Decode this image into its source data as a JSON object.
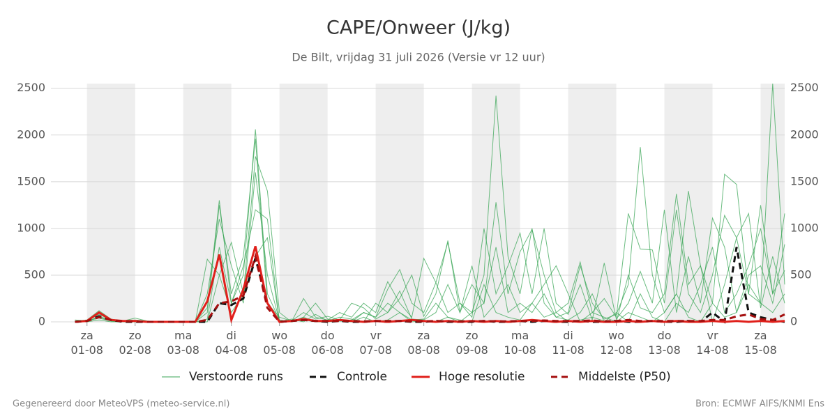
{
  "chart_data": {
    "type": "line",
    "title": "CAPE/Onweer (J/kg)",
    "subtitle": "De Bilt, vrijdag 31 juli 2026 (Versie vr 12 uur)",
    "footer_left": "Gegenereerd door MeteoVPS (meteo-service.nl)",
    "footer_right": "Bron: ECMWF AIFS/KNMI Ens",
    "x": [
      -0.25,
      0,
      0.25,
      0.5,
      0.75,
      1,
      1.25,
      1.5,
      1.75,
      2,
      2.25,
      2.5,
      2.75,
      3,
      3.25,
      3.5,
      3.75,
      4,
      4.25,
      4.5,
      4.75,
      5,
      5.25,
      5.5,
      5.75,
      6,
      6.25,
      6.5,
      6.75,
      7,
      7.25,
      7.5,
      7.75,
      8,
      8.25,
      8.5,
      8.75,
      9,
      9.25,
      9.5,
      9.75,
      10,
      10.25,
      10.5,
      10.75,
      11,
      11.25,
      11.5,
      11.75,
      12,
      12.25,
      12.5,
      12.75,
      13,
      13.25,
      13.5,
      13.75,
      14,
      14.25,
      14.5
    ],
    "xlim": [
      -0.75,
      14.5
    ],
    "xticks": [
      {
        "value": 0,
        "label": "za 01-08"
      },
      {
        "value": 1,
        "label": "zo 02-08"
      },
      {
        "value": 2,
        "label": "ma 03-08"
      },
      {
        "value": 3,
        "label": "di 04-08"
      },
      {
        "value": 4,
        "label": "wo 05-08"
      },
      {
        "value": 5,
        "label": "do 06-08"
      },
      {
        "value": 6,
        "label": "vr 07-08"
      },
      {
        "value": 7,
        "label": "za 08-08"
      },
      {
        "value": 8,
        "label": "zo 09-08"
      },
      {
        "value": 9,
        "label": "ma 10-08"
      },
      {
        "value": 10,
        "label": "di 11-08"
      },
      {
        "value": 11,
        "label": "wo 12-08"
      },
      {
        "value": 12,
        "label": "do 13-08"
      },
      {
        "value": 13,
        "label": "vr 14-08"
      },
      {
        "value": 14,
        "label": "za 15-08"
      }
    ],
    "ylim": [
      0,
      2550
    ],
    "yticks": [
      0,
      500,
      1000,
      1500,
      2000,
      2500
    ],
    "y2lim": [
      0,
      2550
    ],
    "y2ticks": [
      0,
      500,
      1000,
      1500,
      2000,
      2500
    ],
    "grid": true,
    "legend": "bottom",
    "ensemble": {
      "name": "Verstoorde runs",
      "color": "#3aa655",
      "members": [
        [
          10,
          20,
          120,
          30,
          10,
          40,
          10,
          0,
          0,
          0,
          0,
          150,
          1300,
          200,
          500,
          2060,
          300,
          20,
          0,
          50,
          200,
          30,
          10,
          20,
          100,
          50,
          350,
          560,
          200,
          100,
          420,
          850,
          200,
          100,
          500,
          2420,
          700,
          300,
          1000,
          200,
          50,
          100,
          600,
          200,
          30,
          80,
          400,
          1870,
          500,
          100,
          300,
          1400,
          600,
          200,
          1580,
          1470,
          300,
          200,
          2550,
          400
        ],
        [
          5,
          10,
          80,
          20,
          5,
          20,
          5,
          0,
          0,
          0,
          0,
          100,
          1250,
          300,
          700,
          1960,
          200,
          50,
          10,
          100,
          30,
          60,
          20,
          200,
          150,
          30,
          100,
          250,
          500,
          60,
          300,
          870,
          100,
          400,
          200,
          1280,
          300,
          750,
          990,
          500,
          100,
          200,
          640,
          100,
          250,
          50,
          1160,
          780,
          770,
          200,
          1200,
          300,
          100,
          500,
          1140,
          900,
          300,
          1250,
          300,
          1160
        ],
        [
          0,
          0,
          60,
          20,
          0,
          10,
          0,
          0,
          0,
          0,
          0,
          670,
          500,
          850,
          300,
          1770,
          1400,
          100,
          0,
          250,
          50,
          20,
          100,
          50,
          200,
          100,
          430,
          200,
          50,
          680,
          420,
          100,
          200,
          50,
          1000,
          300,
          600,
          950,
          300,
          1000,
          200,
          80,
          400,
          20,
          630,
          30,
          200,
          540,
          200,
          1200,
          100,
          700,
          200,
          1110,
          800,
          100,
          500,
          600,
          200,
          830
        ],
        [
          0,
          10,
          40,
          10,
          0,
          0,
          0,
          0,
          0,
          0,
          0,
          30,
          800,
          200,
          600,
          1200,
          1100,
          0,
          30,
          0,
          80,
          10,
          50,
          30,
          0,
          200,
          100,
          330,
          30,
          20,
          100,
          400,
          100,
          600,
          50,
          200,
          400,
          100,
          200,
          400,
          600,
          300,
          0,
          100,
          50,
          0,
          500,
          150,
          100,
          300,
          1370,
          400,
          600,
          0,
          400,
          900,
          1160,
          150,
          700,
          200
        ],
        [
          20,
          10,
          50,
          10,
          0,
          0,
          0,
          0,
          0,
          0,
          0,
          300,
          1100,
          600,
          200,
          1600,
          500,
          10,
          0,
          50,
          0,
          0,
          20,
          0,
          100,
          50,
          200,
          100,
          20,
          30,
          200,
          50,
          0,
          100,
          200,
          800,
          100,
          200,
          100,
          300,
          50,
          20,
          100,
          300,
          0,
          100,
          0,
          300,
          50,
          0,
          200,
          100,
          400,
          800,
          100,
          300,
          600,
          1000,
          300,
          550
        ],
        [
          0,
          0,
          20,
          0,
          0,
          0,
          0,
          0,
          0,
          0,
          0,
          0,
          500,
          100,
          300,
          700,
          900,
          0,
          0,
          20,
          0,
          0,
          10,
          0,
          50,
          0,
          20,
          100,
          0,
          10,
          0,
          50,
          20,
          0,
          400,
          100,
          50,
          20,
          200,
          50,
          100,
          0,
          20,
          50,
          10,
          0,
          100,
          50,
          0,
          100,
          300,
          50,
          0,
          200,
          50,
          100,
          400,
          200,
          100,
          300
        ]
      ]
    },
    "series": [
      {
        "name": "Controle",
        "color": "#111111",
        "style": "dashed",
        "values": [
          0,
          10,
          60,
          20,
          0,
          0,
          0,
          0,
          0,
          0,
          0,
          0,
          200,
          180,
          250,
          680,
          200,
          0,
          10,
          20,
          10,
          0,
          10,
          0,
          0,
          10,
          0,
          10,
          0,
          0,
          10,
          0,
          0,
          0,
          10,
          0,
          0,
          10,
          0,
          10,
          0,
          0,
          10,
          0,
          0,
          10,
          0,
          0,
          10,
          0,
          0,
          10,
          0,
          100,
          0,
          800,
          100,
          50,
          20,
          0
        ]
      },
      {
        "name": "Hoge resolutie",
        "color": "#e0201b",
        "style": "solid",
        "values": [
          0,
          10,
          100,
          20,
          10,
          10,
          0,
          0,
          0,
          0,
          0,
          220,
          720,
          20,
          350,
          810,
          200,
          0,
          10,
          30,
          10,
          10,
          20,
          10,
          0,
          10,
          0,
          10,
          20,
          10,
          0,
          10,
          0,
          10,
          0,
          10,
          0,
          10,
          20,
          10,
          0,
          10,
          0,
          10,
          0,
          0,
          10,
          0,
          10,
          0,
          10,
          0,
          0,
          10,
          0,
          10,
          0,
          10,
          0,
          10
        ]
      },
      {
        "name": "Middelste (P50)",
        "color": "#a50f0f",
        "style": "dashed",
        "values": [
          0,
          10,
          50,
          20,
          5,
          5,
          0,
          0,
          0,
          0,
          0,
          20,
          200,
          220,
          280,
          700,
          150,
          0,
          10,
          20,
          10,
          10,
          10,
          10,
          5,
          10,
          10,
          10,
          5,
          5,
          10,
          5,
          5,
          5,
          10,
          5,
          5,
          10,
          10,
          15,
          10,
          10,
          10,
          15,
          5,
          10,
          20,
          10,
          10,
          10,
          10,
          10,
          10,
          20,
          20,
          60,
          80,
          30,
          20,
          80
        ]
      }
    ]
  }
}
